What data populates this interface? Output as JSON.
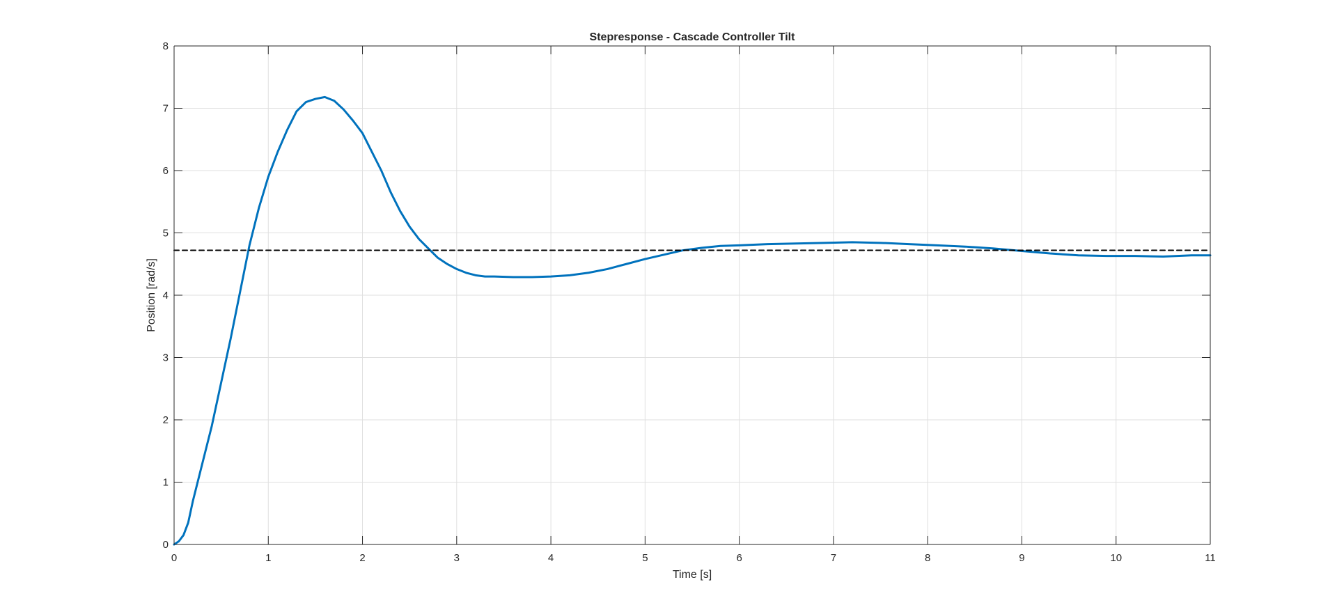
{
  "chart_data": {
    "type": "line",
    "title": "Stepresponse - Cascade Controller Tilt",
    "xlabel": "Time [s]",
    "ylabel": "Position [rad/s]",
    "xlim": [
      0,
      11
    ],
    "ylim": [
      0,
      8
    ],
    "xticks": [
      "0",
      "1",
      "2",
      "3",
      "4",
      "5",
      "6",
      "7",
      "8",
      "9",
      "10",
      "11"
    ],
    "yticks": [
      "0",
      "1",
      "2",
      "3",
      "4",
      "5",
      "6",
      "7",
      "8"
    ],
    "grid": true,
    "legend": "none",
    "series": [
      {
        "color": "#0072BD",
        "style": "solid",
        "x": [
          0,
          0.05,
          0.1,
          0.15,
          0.2,
          0.3,
          0.4,
          0.5,
          0.6,
          0.7,
          0.8,
          0.9,
          1.0,
          1.1,
          1.2,
          1.3,
          1.4,
          1.5,
          1.6,
          1.7,
          1.8,
          1.9,
          2.0,
          2.1,
          2.2,
          2.3,
          2.4,
          2.5,
          2.6,
          2.7,
          2.8,
          2.9,
          3.0,
          3.1,
          3.2,
          3.3,
          3.4,
          3.6,
          3.8,
          4.0,
          4.2,
          4.4,
          4.6,
          4.8,
          5.0,
          5.2,
          5.4,
          5.6,
          5.8,
          6.0,
          6.3,
          6.6,
          6.9,
          7.2,
          7.5,
          7.8,
          8.1,
          8.4,
          8.7,
          9.0,
          9.3,
          9.6,
          9.9,
          10.2,
          10.5,
          10.8,
          11.0
        ],
        "y": [
          0,
          0.05,
          0.15,
          0.35,
          0.7,
          1.3,
          1.9,
          2.6,
          3.3,
          4.05,
          4.8,
          5.4,
          5.9,
          6.3,
          6.65,
          6.95,
          7.1,
          7.15,
          7.18,
          7.12,
          6.98,
          6.8,
          6.6,
          6.3,
          6.0,
          5.65,
          5.35,
          5.1,
          4.9,
          4.75,
          4.6,
          4.5,
          4.42,
          4.36,
          4.32,
          4.3,
          4.3,
          4.29,
          4.29,
          4.3,
          4.32,
          4.36,
          4.42,
          4.5,
          4.58,
          4.65,
          4.72,
          4.76,
          4.79,
          4.8,
          4.82,
          4.83,
          4.84,
          4.85,
          4.84,
          4.82,
          4.8,
          4.78,
          4.75,
          4.71,
          4.67,
          4.64,
          4.63,
          4.63,
          4.62,
          4.64,
          4.64
        ]
      },
      {
        "color": "#000000",
        "style": "dashed",
        "x": [
          0,
          11
        ],
        "y": [
          4.72,
          4.72
        ]
      }
    ]
  }
}
